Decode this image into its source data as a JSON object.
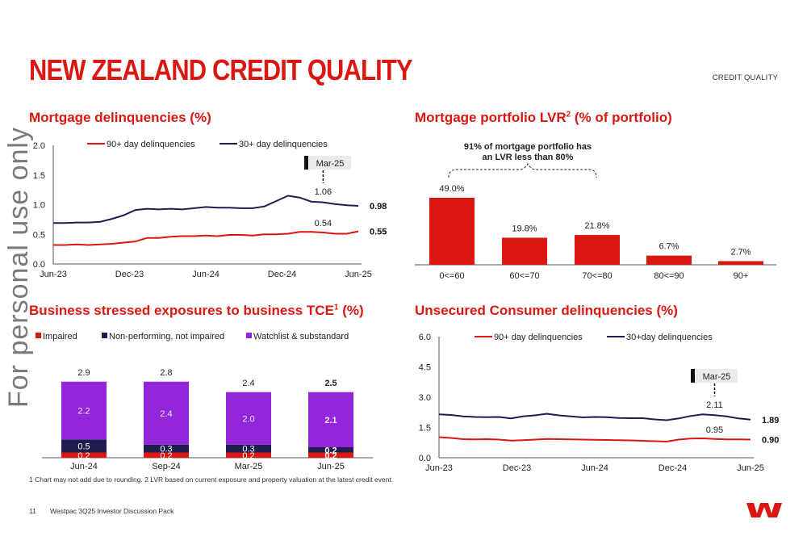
{
  "page": {
    "title": "NEW ZEALAND CREDIT QUALITY",
    "section_label": "CREDIT QUALITY",
    "watermark": "For personal use only",
    "footnote": "1 Chart may not add due to rounding. 2 LVR based on current exposure and property valuation at the latest credit event.",
    "page_number": "11",
    "document_name": "Westpac 3Q25 Investor Discussion Pack",
    "brand_color": "#da1710",
    "logo_icon": "westpac-w-logo"
  },
  "panels": {
    "mortgage_delinquencies_title": "Mortgage delinquencies (%)",
    "lvr_title_main": "Mortgage portfolio LVR",
    "lvr_title_sup": "2",
    "lvr_title_tail": " (% of portfolio)",
    "business_title_main": "Business stressed exposures to business TCE",
    "business_title_sup": "1",
    "business_title_tail": " (%)",
    "unsecured_title": "Unsecured Consumer delinquencies (%)"
  },
  "chart_data": [
    {
      "id": "mortgage-delinquencies",
      "type": "line",
      "x_tick_labels": [
        "Jun-23",
        "Dec-23",
        "Jun-24",
        "Dec-24",
        "Jun-25"
      ],
      "y_tick_labels": [
        "0.0",
        "0.5",
        "1.0",
        "1.5",
        "2.0"
      ],
      "ylim": [
        0,
        2.0
      ],
      "series": [
        {
          "name": "90+ day delinquencies",
          "color": "#da1710",
          "values": [
            0.32,
            0.32,
            0.33,
            0.32,
            0.33,
            0.34,
            0.36,
            0.38,
            0.44,
            0.44,
            0.46,
            0.47,
            0.47,
            0.48,
            0.47,
            0.49,
            0.49,
            0.48,
            0.5,
            0.5,
            0.51,
            0.54,
            0.54,
            0.53,
            0.51,
            0.51,
            0.55
          ]
        },
        {
          "name": "30+ day delinquencies",
          "color": "#1f1c4f",
          "values": [
            0.69,
            0.69,
            0.7,
            0.7,
            0.71,
            0.76,
            0.82,
            0.91,
            0.93,
            0.92,
            0.93,
            0.92,
            0.94,
            0.96,
            0.95,
            0.95,
            0.94,
            0.94,
            0.97,
            1.06,
            1.15,
            1.12,
            1.05,
            1.04,
            1.01,
            0.99,
            0.98
          ]
        }
      ],
      "annotation": {
        "label": "Mar-25",
        "values": [
          "1.06",
          "0.54"
        ],
        "end_labels": [
          "0.98",
          "0.55"
        ]
      }
    },
    {
      "id": "mortgage-lvr",
      "type": "bar",
      "categories": [
        "0<=60",
        "60<=70",
        "70<=80",
        "80<=90",
        "90+"
      ],
      "values": [
        49.0,
        19.8,
        21.8,
        6.7,
        2.7
      ],
      "value_labels": [
        "49.0%",
        "19.8%",
        "21.8%",
        "6.7%",
        "2.7%"
      ],
      "color": "#da1710",
      "callout": [
        "91% of mortgage portfolio has",
        "an LVR less than 80%"
      ]
    },
    {
      "id": "business-stressed",
      "type": "bar",
      "stacked": true,
      "categories": [
        "Jun-24",
        "Sep-24",
        "Mar-25",
        "Jun-25"
      ],
      "series": [
        {
          "name": "Impaired",
          "color": "#da1710",
          "values": [
            0.2,
            0.2,
            0.2,
            0.2
          ],
          "labels": [
            "0.2",
            "0.2",
            "0.2",
            "0.2"
          ]
        },
        {
          "name": "Non-performing, not impaired",
          "color": "#1f1c4f",
          "values": [
            0.5,
            0.3,
            0.3,
            0.2
          ],
          "labels": [
            "0.5",
            "0.3",
            "0.3",
            "0.2"
          ]
        },
        {
          "name": "Watchlist & substandard",
          "color": "#9226d8",
          "values": [
            2.2,
            2.4,
            2.0,
            2.1
          ],
          "labels": [
            "2.2",
            "2.4",
            "2.0",
            "2.1"
          ]
        }
      ],
      "totals": [
        "2.9",
        "2.8",
        "2.4",
        "2.5"
      ],
      "bold_last": true
    },
    {
      "id": "unsecured-delinquencies",
      "type": "line",
      "x_tick_labels": [
        "Jun-23",
        "Dec-23",
        "Jun-24",
        "Dec-24",
        "Jun-25"
      ],
      "y_tick_labels": [
        "0.0",
        "1.5",
        "3.0",
        "4.5",
        "6.0"
      ],
      "ylim": [
        0,
        6.0
      ],
      "series": [
        {
          "name": "90+ day delinquencies",
          "color": "#da1710",
          "values": [
            1.02,
            0.98,
            0.92,
            0.91,
            0.92,
            0.9,
            0.85,
            0.87,
            0.9,
            0.93,
            0.92,
            0.91,
            0.9,
            0.89,
            0.88,
            0.87,
            0.86,
            0.84,
            0.82,
            0.8,
            0.9,
            0.95,
            0.96,
            0.93,
            0.91,
            0.91,
            0.9
          ]
        },
        {
          "name": "30+day delinquencies",
          "color": "#1f1c4f",
          "values": [
            2.15,
            2.12,
            2.05,
            2.02,
            2.01,
            2.02,
            1.95,
            2.05,
            2.1,
            2.18,
            2.1,
            2.05,
            2.0,
            2.02,
            2.01,
            1.97,
            1.96,
            1.96,
            1.9,
            1.86,
            1.95,
            2.07,
            2.15,
            2.11,
            2.05,
            1.95,
            1.89
          ]
        }
      ],
      "annotation": {
        "label": "Mar-25",
        "values": [
          "2.11",
          "0.95"
        ],
        "end_labels": [
          "1.89",
          "0.90"
        ]
      }
    }
  ]
}
